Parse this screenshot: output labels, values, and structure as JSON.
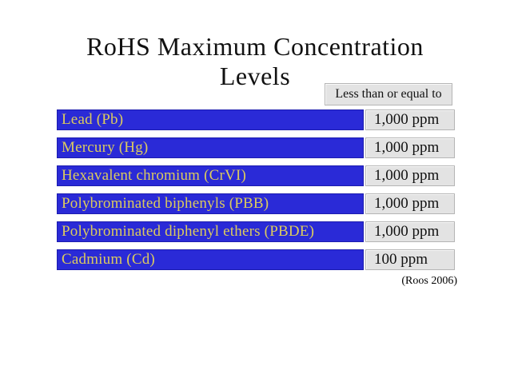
{
  "slide": {
    "title_lines": [
      "RoHS Maximum Concentration",
      "Levels"
    ],
    "column_header": "Less than or equal to",
    "rows": [
      {
        "substance": "Lead (Pb)",
        "limit": "1,000 ppm"
      },
      {
        "substance": "Mercury (Hg)",
        "limit": "1,000 ppm"
      },
      {
        "substance": "Hexavalent chromium (CrVI)",
        "limit": "1,000 ppm"
      },
      {
        "substance": "Polybrominated biphenyls (PBB)",
        "limit": "1,000 ppm"
      },
      {
        "substance": "Polybrominated diphenyl ethers (PBDE)",
        "limit": "1,000 ppm"
      },
      {
        "substance": "Cadmium (Cd)",
        "limit": "100 ppm"
      }
    ],
    "citation": "(Roos 2006)",
    "colors": {
      "bar_fill": "#2a2ad7",
      "bar_border": "#1c1caf",
      "bar_text": "#dccb5e",
      "box_fill": "#e3e3e3",
      "box_border": "#b5b5b5",
      "text": "#111111"
    }
  }
}
